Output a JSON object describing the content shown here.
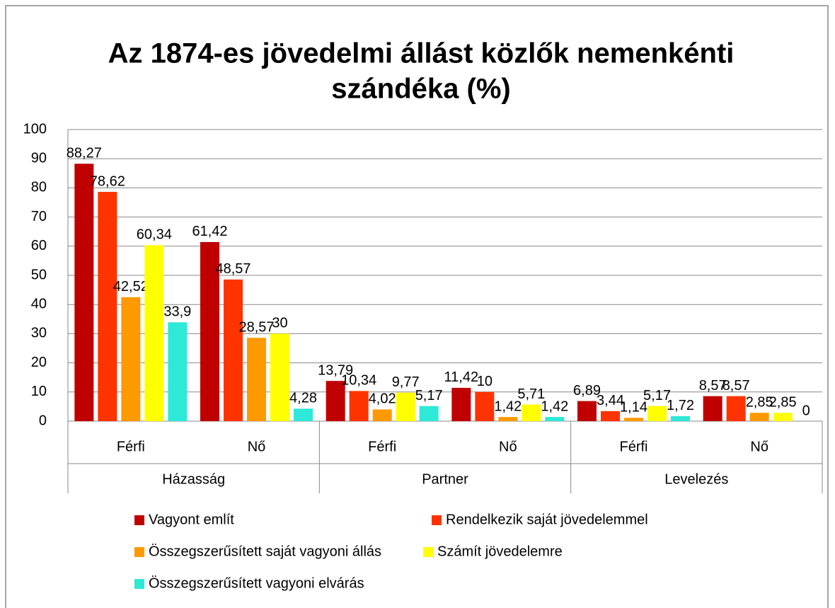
{
  "chart_data": {
    "type": "bar",
    "title": [
      "Az 1874-es jövedelmi állást közlők nemenkénti",
      "szándéka (%)"
    ],
    "categories": [
      "Férfi",
      "Nő",
      "Férfi",
      "Nő",
      "Férfi",
      "Nő"
    ],
    "category_groups": [
      "Házasság",
      "Partner",
      "Levelezés"
    ],
    "series": [
      {
        "name": "Vagyont említ",
        "color": "#c00000",
        "values": [
          88.27,
          61.42,
          13.79,
          11.42,
          6.89,
          8.57
        ],
        "value_labels": [
          "88,27",
          "61,42",
          "13,79",
          "11,42",
          "6,89",
          "8,57"
        ]
      },
      {
        "name": "Rendelkezik saját jövedelemmel",
        "color": "#ff3300",
        "values": [
          78.62,
          48.57,
          10.34,
          10,
          3.44,
          8.57
        ],
        "value_labels": [
          "78,62",
          "48,57",
          "10,34",
          "10",
          "3,44",
          "8,57"
        ]
      },
      {
        "name": "Összegszerűsített saját vagyoni állás",
        "color": "#ff9900",
        "values": [
          42.52,
          28.57,
          4.02,
          1.42,
          1.14,
          2.85
        ],
        "value_labels": [
          "42,52",
          "28,57",
          "4,02",
          "1,42",
          "1,14",
          "2,85"
        ]
      },
      {
        "name": "Számít jövedelemre",
        "color": "#ffff00",
        "values": [
          60.34,
          30,
          9.77,
          5.71,
          5.17,
          2.85
        ],
        "value_labels": [
          "60,34",
          "30",
          "9,77",
          "5,71",
          "5,17",
          "2,85"
        ]
      },
      {
        "name": "Összegszerűsített vagyoni elvárás",
        "color": "#2ee8d8",
        "values": [
          33.9,
          4.28,
          5.17,
          1.42,
          1.72,
          0
        ],
        "value_labels": [
          "33,9",
          "4,28",
          "5,17",
          "1,42",
          "1,72",
          "0"
        ]
      }
    ],
    "ylim": [
      0,
      100
    ],
    "yticks": [
      0,
      10,
      20,
      30,
      40,
      50,
      60,
      70,
      80,
      90,
      100
    ],
    "grid": true
  }
}
